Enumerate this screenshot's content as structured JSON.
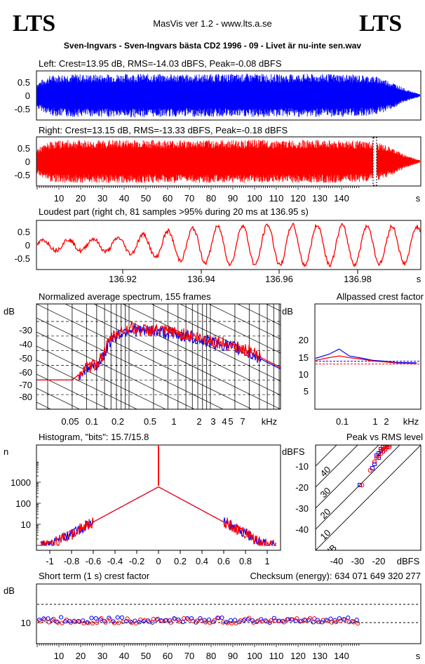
{
  "header": {
    "logo_left": "LTS",
    "logo_right": "LTS",
    "app": "MasVis ver 1.2 - www.lts.a.se",
    "file": "Sven-Ingvars - Sven-Ingvars bästa CD2 1996 - 09 - Livet är nu-inte sen.wav"
  },
  "colors": {
    "left": "#0000ff",
    "right": "#ff0000"
  },
  "chart_data": [
    {
      "id": "left-waveform",
      "type": "area",
      "title": "Left: Crest=13.95 dB, RMS=-14.03 dBFS, Peak=-0.08 dBFS",
      "ytick_labels": [
        "0.5",
        "0",
        "-0.5"
      ],
      "ylim": [
        -1,
        1
      ],
      "xlim": [
        0,
        148
      ],
      "envelope_peak": [
        0.55,
        0.85,
        0.9,
        0.9,
        0.88,
        0.9,
        0.9,
        0.92,
        0.9,
        0.9,
        0.9,
        0.88,
        0.9,
        0.9,
        0.9,
        0.9,
        0.92,
        0.9,
        0.88,
        0.9,
        0.9,
        0.9,
        0.9,
        0.88,
        0.85,
        0.78,
        0.55,
        0.25,
        0.05
      ]
    },
    {
      "id": "right-waveform",
      "type": "area",
      "title": "Right: Crest=13.15 dB, RMS=-13.33 dBFS, Peak=-0.18 dBFS",
      "ytick_labels": [
        "0.5",
        "0",
        "-0.5"
      ],
      "ylim": [
        -1,
        1
      ],
      "xlim": [
        0,
        148
      ],
      "xtick_labels": [
        "10",
        "20",
        "30",
        "40",
        "50",
        "60",
        "70",
        "80",
        "90",
        "100",
        "110",
        "120",
        "130",
        "140",
        "s"
      ],
      "envelope_peak": [
        0.55,
        0.85,
        0.9,
        0.9,
        0.88,
        0.9,
        0.9,
        0.92,
        0.9,
        0.9,
        0.9,
        0.88,
        0.9,
        0.9,
        0.9,
        0.9,
        0.92,
        0.9,
        0.88,
        0.9,
        0.9,
        0.9,
        0.9,
        0.88,
        0.85,
        0.78,
        0.55,
        0.25,
        0.05
      ],
      "marker_at": 136.95
    },
    {
      "id": "loudest-part",
      "type": "line",
      "title": "Loudest part (right ch, 81 samples >95% during 20 ms at 136.95 s)",
      "ytick_labels": [
        "0.5",
        "0",
        "-0.5"
      ],
      "ylim": [
        -1,
        1
      ],
      "xtick_labels": [
        "136.92",
        "136.94",
        "136.96",
        "136.98",
        "s"
      ],
      "x": [
        136.9,
        136.91,
        136.92,
        136.93,
        136.94,
        136.95,
        136.96,
        136.97,
        136.98,
        136.99
      ],
      "amplitude": [
        0.2,
        0.25,
        0.3,
        0.55,
        0.75,
        0.85,
        0.88,
        0.86,
        0.84,
        0.8
      ]
    },
    {
      "id": "spectrum",
      "type": "line",
      "title": "Normalized average spectrum, 155 frames",
      "ylabel": "dB",
      "ytick_labels": [
        "-30",
        "-40",
        "-50",
        "-60",
        "-70",
        "-80"
      ],
      "xtick_labels": [
        "0.05",
        "0.1",
        "0.2",
        "0.5",
        "1",
        "2",
        "3",
        "4",
        "5",
        "7",
        "kHz"
      ],
      "ylim": [
        -90,
        -18
      ],
      "series": [
        {
          "x": [
            0.02,
            0.03,
            0.04,
            0.05,
            0.06,
            0.08,
            0.1,
            0.15,
            0.2,
            0.3,
            0.5,
            0.7,
            1,
            1.5,
            2,
            3,
            4,
            5,
            7,
            10,
            15,
            20
          ],
          "y": [
            -70,
            -62,
            -60,
            -52,
            -42,
            -38,
            -35,
            -37,
            -36,
            -38,
            -40,
            -42,
            -44,
            -46,
            -48,
            -52,
            -55,
            -58,
            -62,
            -66,
            -72,
            -84
          ]
        },
        {
          "x": [
            0.02,
            0.03,
            0.04,
            0.05,
            0.06,
            0.08,
            0.1,
            0.15,
            0.2,
            0.3,
            0.5,
            0.7,
            1,
            1.5,
            2,
            3,
            4,
            5,
            7,
            10,
            15,
            20
          ],
          "y": [
            -70,
            -62,
            -59,
            -51,
            -41,
            -37,
            -34,
            -36,
            -36,
            -37,
            -39,
            -41,
            -43,
            -45,
            -47,
            -51,
            -54,
            -57,
            -61,
            -65,
            -71,
            -83
          ]
        }
      ]
    },
    {
      "id": "allpass-crest",
      "type": "line",
      "title": "Allpassed crest factor",
      "ylabel": "dB",
      "ytick_labels": [
        "20",
        "15",
        "10",
        "5"
      ],
      "ylim": [
        0,
        25
      ],
      "xtick_labels": [
        "0.1",
        "1",
        "2",
        "kHz"
      ],
      "series": [
        {
          "x": [
            0.02,
            0.05,
            0.1,
            0.2,
            0.5,
            1,
            2,
            5,
            20
          ],
          "y": [
            14.8,
            16,
            17.5,
            15.5,
            14.8,
            14.2,
            14,
            13.6,
            13.5
          ]
        },
        {
          "x": [
            0.02,
            0.05,
            0.1,
            0.2,
            0.5,
            1,
            2,
            5,
            20
          ],
          "y": [
            14.2,
            15,
            15.5,
            15,
            14.5,
            14,
            13.8,
            13.4,
            13.2
          ]
        }
      ],
      "reference_lines": [
        13.95,
        13.15
      ]
    },
    {
      "id": "histogram",
      "type": "line",
      "title": "Histogram, \"bits\": 15.7/15.8",
      "ylabel": "n",
      "ytick_labels": [
        "1000",
        "100",
        "10"
      ],
      "xtick_labels": [
        "-1",
        "-0.8",
        "-0.6",
        "-0.4",
        "-0.2",
        "0",
        "0.2",
        "0.4",
        "0.6",
        "0.8",
        "1"
      ],
      "x": [
        -1,
        -0.8,
        -0.6,
        -0.4,
        -0.2,
        0,
        0.2,
        0.4,
        0.6,
        0.8,
        1
      ],
      "y": [
        1,
        8,
        20,
        60,
        180,
        600,
        180,
        60,
        20,
        8,
        1
      ]
    },
    {
      "id": "peak-vs-rms",
      "type": "scatter",
      "title": "Peak vs RMS level",
      "ylabel": "dBFS",
      "ytick_labels": [
        "-10",
        "-20",
        "-30",
        "-40"
      ],
      "xtick_labels": [
        "-40",
        "-30",
        "-20",
        "dBFS"
      ],
      "diagonal_labels": [
        "40",
        "30",
        "20",
        "10",
        "0 dB"
      ],
      "series": [
        {
          "x": [
            -29,
            -23,
            -22,
            -21,
            -20,
            -20,
            -19,
            -19,
            -18,
            -18,
            -17,
            -17,
            -16,
            -16,
            -15
          ],
          "y": [
            -19,
            -11,
            -9,
            -5,
            -6,
            -4,
            -3,
            -2,
            -3,
            -1,
            -2,
            -1,
            -1,
            0,
            0
          ]
        },
        {
          "x": [
            -28,
            -24,
            -22,
            -21,
            -20,
            -19,
            -19,
            -18,
            -18,
            -17,
            -17,
            -16,
            -16,
            -15,
            -15
          ],
          "y": [
            -19,
            -12,
            -8,
            -6,
            -5,
            -4,
            -2,
            -3,
            -1,
            -2,
            -1,
            -1,
            0,
            -1,
            0
          ]
        }
      ]
    },
    {
      "id": "short-term-crest",
      "type": "scatter",
      "title": "Short term (1 s) crest factor",
      "checksum": "Checksum (energy):   634 071 649 320 277",
      "ylabel": "dB",
      "ytick_labels": [
        "10"
      ],
      "xtick_labels": [
        "10",
        "20",
        "30",
        "40",
        "50",
        "60",
        "70",
        "80",
        "90",
        "100",
        "110",
        "120",
        "130",
        "140",
        "s"
      ],
      "ylim": [
        0,
        25
      ],
      "mean_left": 11.4,
      "mean_right": 11.0
    }
  ]
}
